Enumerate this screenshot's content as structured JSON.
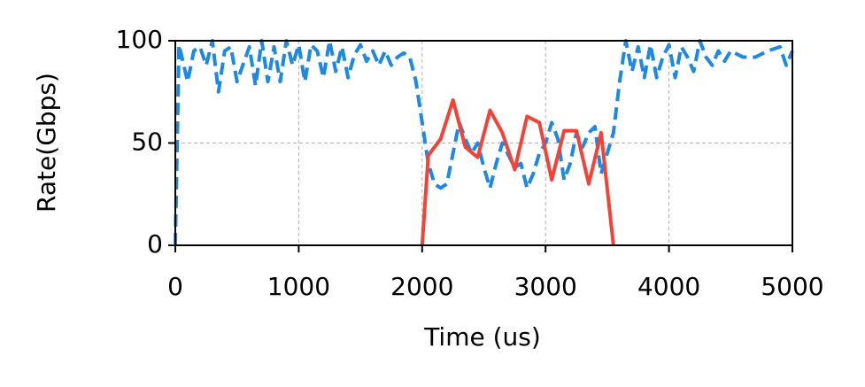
{
  "chart_data": {
    "type": "line",
    "xlabel": "Time (us)",
    "ylabel": "Rate(Gbps)",
    "xlim": [
      0,
      5000
    ],
    "xticks": [
      0,
      1000,
      2000,
      3000,
      4000,
      5000
    ],
    "ylim": [
      0,
      100
    ],
    "yticks": [
      0,
      50,
      100
    ],
    "grid": true,
    "series": [
      {
        "color": "#1e88e5",
        "dash": true,
        "x": [
          0,
          30,
          100,
          150,
          200,
          250,
          300,
          350,
          400,
          450,
          500,
          600,
          650,
          700,
          750,
          800,
          850,
          900,
          950,
          1000,
          1050,
          1100,
          1150,
          1200,
          1250,
          1300,
          1350,
          1400,
          1450,
          1500,
          1550,
          1600,
          1650,
          1700,
          1750,
          1800,
          1850,
          1900,
          1950,
          2000,
          2050,
          2100,
          2150,
          2200,
          2250,
          2300,
          2350,
          2400,
          2450,
          2500,
          2550,
          2600,
          2650,
          2700,
          2750,
          2800,
          2850,
          2900,
          2950,
          3000,
          3050,
          3100,
          3150,
          3200,
          3250,
          3300,
          3350,
          3400,
          3450,
          3500,
          3550,
          3600,
          3650,
          3700,
          3750,
          3800,
          3850,
          3900,
          3950,
          4000,
          4050,
          4100,
          4150,
          4200,
          4250,
          4300,
          4350,
          4400,
          4450,
          4500,
          4600,
          4700,
          4800,
          4900,
          4950,
          5000
        ],
        "values": [
          0,
          98,
          80,
          95,
          97,
          88,
          100,
          75,
          95,
          97,
          80,
          97,
          78,
          100,
          80,
          97,
          80,
          100,
          88,
          98,
          80,
          98,
          95,
          82,
          100,
          85,
          97,
          82,
          93,
          98,
          90,
          95,
          88,
          95,
          88,
          92,
          94,
          92,
          80,
          60,
          40,
          30,
          28,
          30,
          45,
          60,
          52,
          45,
          50,
          38,
          28,
          40,
          50,
          44,
          38,
          40,
          28,
          35,
          45,
          50,
          60,
          52,
          32,
          40,
          55,
          48,
          55,
          58,
          35,
          45,
          55,
          80,
          100,
          85,
          97,
          82,
          98,
          82,
          92,
          98,
          82,
          97,
          92,
          85,
          100,
          92,
          88,
          95,
          90,
          95,
          92,
          92,
          95,
          97,
          88,
          95
        ]
      },
      {
        "color": "#f44336",
        "dash": false,
        "x": [
          2000,
          2050,
          2150,
          2250,
          2350,
          2450,
          2550,
          2650,
          2750,
          2850,
          2950,
          3000,
          3050,
          3150,
          3250,
          3350,
          3450,
          3550
        ],
        "values": [
          0,
          44,
          52,
          71,
          48,
          43,
          66,
          55,
          37,
          63,
          60,
          46,
          32,
          56,
          56,
          30,
          55,
          0
        ]
      }
    ]
  }
}
